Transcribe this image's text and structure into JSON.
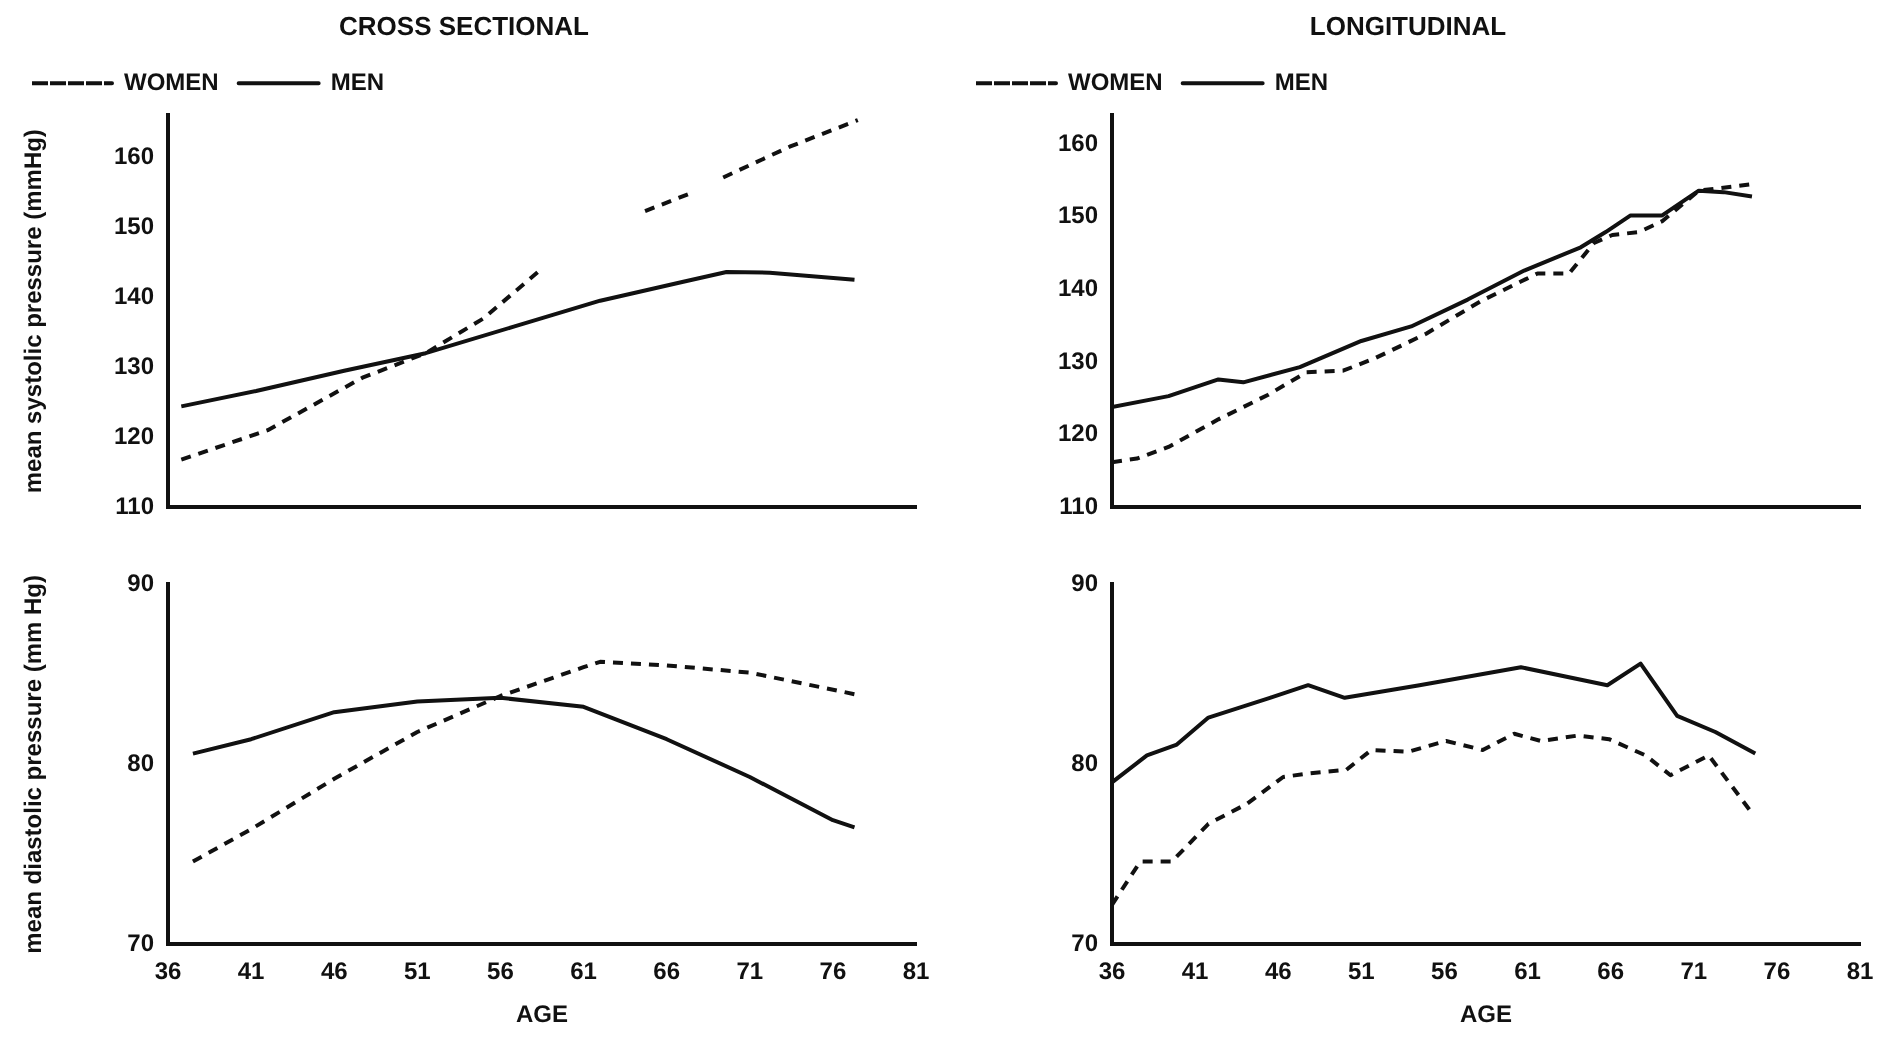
{
  "chart_data": [
    {
      "type": "line",
      "title": "CROSS SECTIONAL",
      "ylabel": "mean systolic pressure (mmHg)",
      "xlim": [
        36,
        81
      ],
      "xticks": [
        36,
        41,
        46,
        51,
        56,
        61,
        66,
        71,
        76,
        81
      ],
      "ylim": [
        110,
        166
      ],
      "yticks": [
        110,
        120,
        130,
        140,
        150,
        160
      ],
      "tick_labels": "y",
      "legend": "top left",
      "grid": false,
      "marker": "none",
      "series": [
        {
          "name": "WOMEN",
          "color": "#111111",
          "line_style": "dashed",
          "x": [
            36.8,
            42,
            47.7,
            51.5,
            55,
            58.3,
            61.5,
            64.7,
            67.7,
            68.5,
            69.4,
            73.4,
            77.5
          ],
          "values": [
            116.8,
            121,
            128.5,
            132,
            137,
            143.7,
            null,
            152.3,
            155.1,
            null,
            157.1,
            161.5,
            165.3
          ]
        },
        {
          "name": "MEN",
          "color": "#111111",
          "line_style": "solid",
          "x": [
            36.8,
            41.3,
            46.6,
            51.5,
            56.8,
            62,
            67,
            69.6,
            72.2,
            77.3
          ],
          "values": [
            124.4,
            126.6,
            129.5,
            132,
            135.8,
            139.5,
            142.2,
            143.6,
            143.5,
            142.5
          ]
        }
      ]
    },
    {
      "type": "line",
      "title": "LONGITUDINAL",
      "xlim": [
        36,
        81
      ],
      "xticks": [
        36,
        41,
        46,
        51,
        56,
        61,
        66,
        71,
        76,
        81
      ],
      "ylim": [
        110,
        164
      ],
      "yticks": [
        110,
        120,
        130,
        140,
        150,
        160
      ],
      "tick_labels": "y",
      "legend": "top left",
      "grid": false,
      "marker": "none",
      "series": [
        {
          "name": "WOMEN",
          "color": "#111111",
          "line_style": "dashed",
          "x": [
            36,
            37.5,
            39.4,
            42.4,
            45.4,
            47.7,
            49.9,
            51.8,
            54.9,
            58.2,
            61.6,
            63.5,
            65,
            66.1,
            67.7,
            69.1,
            71.3,
            74.5
          ],
          "values": [
            116.2,
            116.7,
            118.3,
            122.1,
            125.5,
            128.6,
            128.8,
            130.5,
            133.9,
            138.4,
            142.2,
            142.2,
            146.4,
            147.5,
            147.9,
            149.4,
            153.6,
            154.5
          ]
        },
        {
          "name": "MEN",
          "color": "#111111",
          "line_style": "solid",
          "x": [
            36,
            39.4,
            42.4,
            43.9,
            47.3,
            51,
            54,
            57.4,
            60.8,
            64.2,
            65.7,
            67.2,
            69.1,
            71.3,
            72.8,
            74.5
          ],
          "values": [
            123.8,
            125.3,
            127.6,
            127.2,
            129.3,
            132.9,
            134.9,
            138.6,
            142.6,
            145.8,
            147.9,
            150.2,
            150.2,
            153.6,
            153.4,
            152.8
          ]
        }
      ]
    },
    {
      "type": "line",
      "ylabel": "mean diastolic pressure (mm Hg)",
      "xlabel": "AGE",
      "xlim": [
        36,
        81
      ],
      "xticks": [
        36,
        41,
        46,
        51,
        56,
        61,
        66,
        71,
        76,
        81
      ],
      "ylim": [
        70,
        90
      ],
      "yticks": [
        70,
        80,
        90
      ],
      "grid": false,
      "marker": "none",
      "series": [
        {
          "color": "#111111",
          "line_style": "dashed",
          "x": [
            37.5,
            41,
            46,
            51,
            56,
            61,
            62,
            66,
            71,
            77.3
          ],
          "values": [
            74.6,
            76.4,
            79.2,
            81.8,
            83.8,
            85.4,
            85.7,
            85.5,
            85.1,
            83.9
          ]
        },
        {
          "color": "#111111",
          "line_style": "solid",
          "x": [
            37.5,
            41,
            46,
            51,
            56,
            61,
            66,
            71,
            76,
            77.3
          ],
          "values": [
            80.6,
            81.4,
            82.9,
            83.5,
            83.7,
            83.2,
            81.4,
            79.3,
            76.9,
            76.5
          ]
        }
      ]
    },
    {
      "type": "line",
      "xlabel": "AGE",
      "xlim": [
        36,
        81
      ],
      "xticks": [
        36,
        41,
        46,
        51,
        56,
        61,
        66,
        71,
        76,
        81
      ],
      "ylim": [
        70,
        90
      ],
      "yticks": [
        70,
        80,
        90
      ],
      "grid": false,
      "marker": "none",
      "series": [
        {
          "color": "#111111",
          "line_style": "dashed",
          "x": [
            36,
            37.7,
            39.6,
            41.8,
            44.1,
            46.3,
            47.8,
            50.1,
            51.6,
            53.8,
            56.1,
            58.3,
            60.2,
            61.8,
            64,
            65.9,
            68.1,
            69.6,
            71.9,
            74.5
          ],
          "values": [
            72.2,
            74.6,
            74.6,
            76.7,
            77.8,
            79.3,
            79.5,
            79.7,
            80.8,
            80.7,
            81.3,
            80.8,
            81.7,
            81.3,
            81.6,
            81.4,
            80.5,
            79.4,
            80.5,
            77.3
          ]
        },
        {
          "color": "#111111",
          "line_style": "solid",
          "x": [
            36,
            38.1,
            39.9,
            41.8,
            45.5,
            47.8,
            50,
            54.5,
            60.6,
            65.8,
            67.8,
            70,
            72.3,
            74.7
          ],
          "values": [
            79,
            80.5,
            81.1,
            82.6,
            83.7,
            84.4,
            83.7,
            84.4,
            85.4,
            84.4,
            85.6,
            82.7,
            81.8,
            80.6
          ]
        }
      ]
    }
  ]
}
